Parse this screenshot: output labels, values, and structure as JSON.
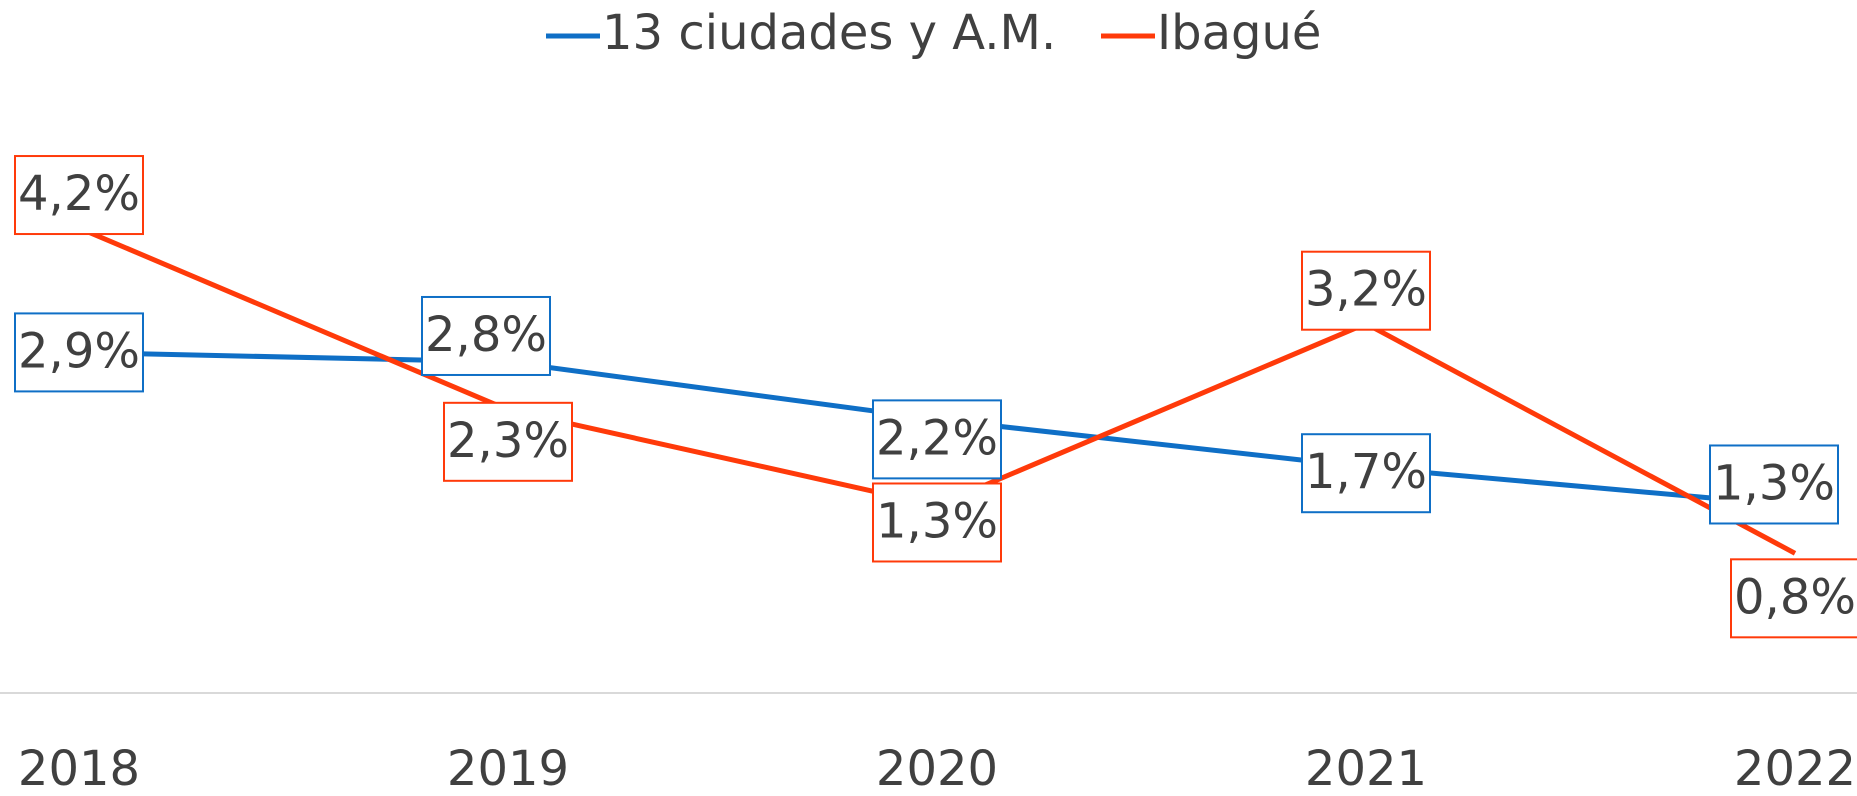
{
  "chart_data": {
    "type": "line",
    "categories": [
      "2018",
      "2019",
      "2020",
      "2021",
      "2022"
    ],
    "series": [
      {
        "name": "13 ciudades y A.M.",
        "color": "#0f6fc6",
        "values": [
          2.9,
          2.8,
          2.2,
          1.7,
          1.3
        ],
        "value_labels": [
          "2,9%",
          "2,8%",
          "2,2%",
          "1,7%",
          "1,3%"
        ]
      },
      {
        "name": "Ibagué",
        "color": "#ff3a0a",
        "values": [
          4.2,
          2.3,
          1.3,
          3.2,
          0.8
        ],
        "value_labels": [
          "4,2%",
          "2,3%",
          "1,3%",
          "3,2%",
          "0,8%"
        ]
      }
    ],
    "ylim": [
      -0.66,
      5.0
    ],
    "legend": "top"
  }
}
